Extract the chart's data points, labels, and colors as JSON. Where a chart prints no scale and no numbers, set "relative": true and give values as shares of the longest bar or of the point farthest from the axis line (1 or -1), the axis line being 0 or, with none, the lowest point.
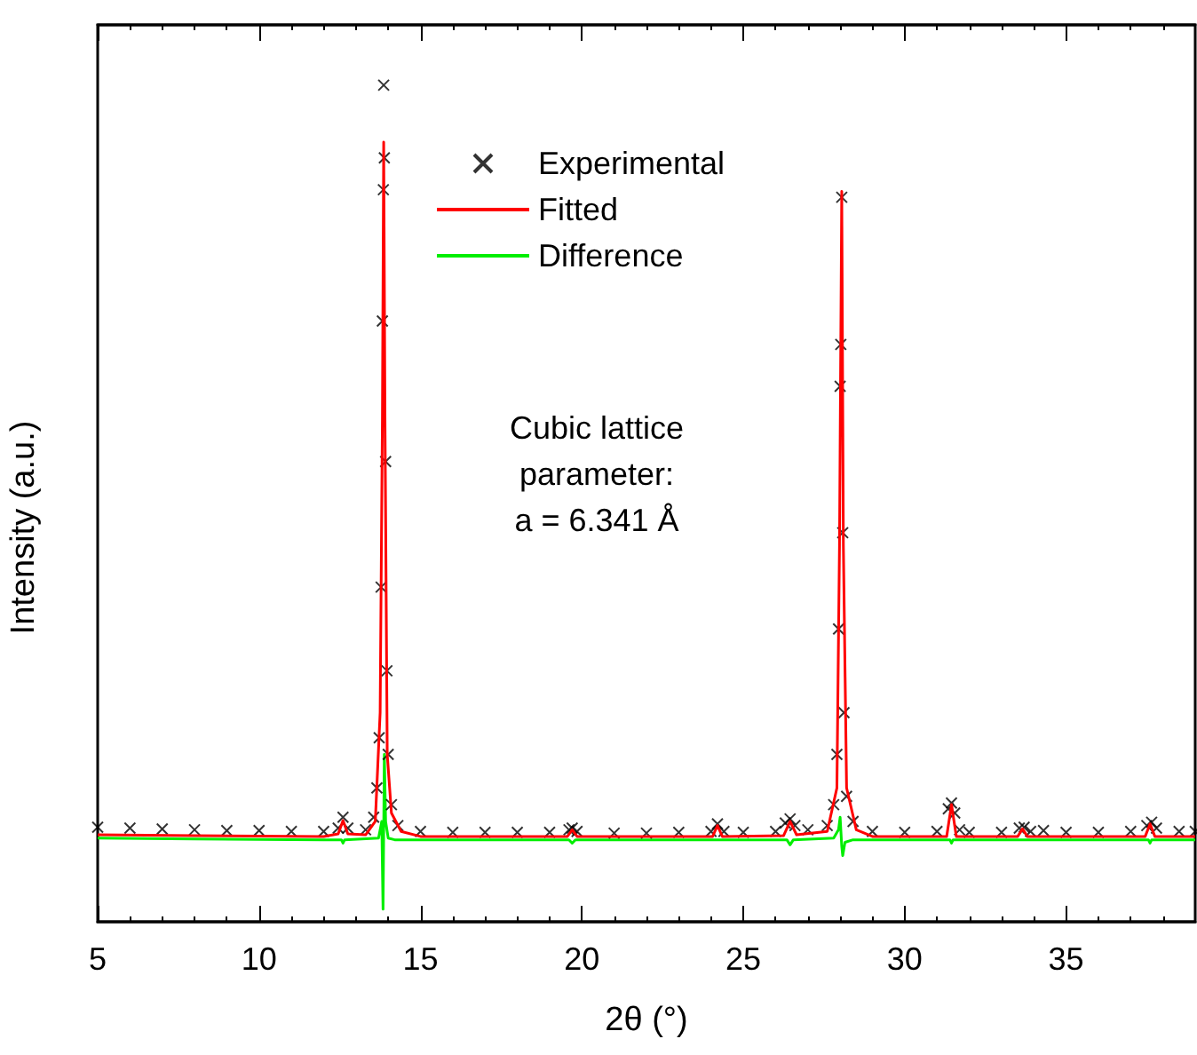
{
  "chart_data": {
    "type": "line",
    "relative": true,
    "xlabel": "2θ (°)",
    "ylabel": "Intensity (a.u.)",
    "xlim": [
      5,
      39
    ],
    "xticks": [
      5,
      10,
      15,
      20,
      25,
      30,
      35
    ],
    "grid": false,
    "legend": "top",
    "annotations": [
      "Cubic lattice\nparameter:\na = 6.341 Å"
    ],
    "series": [
      {
        "name": "Experimental",
        "type": "scatter",
        "marker": "cross",
        "color": "#000000",
        "x": [
          5,
          6,
          7,
          8,
          9,
          10,
          11,
          12,
          12.45,
          12.6,
          12.75,
          13.3,
          13.55,
          13.65,
          13.72,
          13.78,
          13.82,
          13.85,
          13.86,
          13.88,
          13.92,
          13.96,
          14.0,
          14.1,
          14.3,
          15,
          16,
          17,
          18,
          19,
          19.6,
          19.7,
          19.85,
          21,
          22,
          23,
          24,
          24.2,
          24.4,
          25,
          26,
          26.3,
          26.45,
          26.6,
          27,
          27.6,
          27.8,
          27.9,
          27.95,
          28.0,
          28.02,
          28.05,
          28.08,
          28.12,
          28.2,
          28.4,
          29,
          30,
          31,
          31.35,
          31.45,
          31.55,
          31.7,
          32,
          33,
          33.55,
          33.7,
          33.9,
          34.3,
          35,
          36,
          37,
          37.5,
          37.65,
          37.8,
          38.5,
          39
        ],
        "values": [
          0.113,
          0.112,
          0.111,
          0.11,
          0.109,
          0.109,
          0.108,
          0.108,
          0.112,
          0.125,
          0.112,
          0.11,
          0.125,
          0.16,
          0.22,
          0.4,
          0.718,
          0.875,
          1.0,
          0.913,
          0.55,
          0.3,
          0.2,
          0.14,
          0.115,
          0.108,
          0.107,
          0.107,
          0.107,
          0.107,
          0.11,
          0.112,
          0.108,
          0.106,
          0.106,
          0.107,
          0.108,
          0.117,
          0.108,
          0.107,
          0.108,
          0.118,
          0.123,
          0.115,
          0.11,
          0.115,
          0.14,
          0.2,
          0.35,
          0.64,
          0.69,
          0.866,
          0.465,
          0.25,
          0.15,
          0.12,
          0.108,
          0.107,
          0.108,
          0.135,
          0.142,
          0.13,
          0.11,
          0.107,
          0.107,
          0.112,
          0.113,
          0.108,
          0.109,
          0.107,
          0.107,
          0.108,
          0.115,
          0.119,
          0.112,
          0.108,
          0.108
        ]
      },
      {
        "name": "Fitted",
        "type": "line",
        "marker": "none",
        "color": "#ff0000",
        "x": [
          5,
          8,
          12,
          12.45,
          12.6,
          12.75,
          13.3,
          13.6,
          13.75,
          13.82,
          13.86,
          13.9,
          13.97,
          14.1,
          14.4,
          15,
          19.55,
          19.7,
          19.85,
          24.05,
          24.2,
          24.35,
          26.25,
          26.45,
          26.65,
          27.6,
          27.9,
          27.98,
          28.05,
          28.1,
          28.2,
          28.5,
          29,
          31.3,
          31.45,
          31.6,
          33.5,
          33.65,
          33.8,
          37.45,
          37.6,
          37.75,
          39
        ],
        "values": [
          0.104,
          0.103,
          0.102,
          0.105,
          0.121,
          0.105,
          0.104,
          0.12,
          0.25,
          0.6,
          0.932,
          0.6,
          0.2,
          0.13,
          0.108,
          0.102,
          0.102,
          0.11,
          0.102,
          0.102,
          0.115,
          0.102,
          0.103,
          0.12,
          0.104,
          0.108,
          0.16,
          0.45,
          0.873,
          0.45,
          0.16,
          0.11,
          0.102,
          0.102,
          0.14,
          0.102,
          0.102,
          0.111,
          0.102,
          0.102,
          0.117,
          0.102,
          0.102
        ]
      },
      {
        "name": "Difference",
        "type": "line",
        "marker": "none",
        "color": "#00ee00",
        "x": [
          5,
          8,
          12,
          12.55,
          12.6,
          12.65,
          13.7,
          13.8,
          13.84,
          13.88,
          13.92,
          14.0,
          14.2,
          19.6,
          19.7,
          19.8,
          26.35,
          26.45,
          26.55,
          27.8,
          27.95,
          28.0,
          28.05,
          28.08,
          28.15,
          28.4,
          31.4,
          31.45,
          31.5,
          37.55,
          37.6,
          37.65,
          39
        ],
        "values": [
          0.1,
          0.099,
          0.098,
          0.098,
          0.094,
          0.098,
          0.1,
          0.12,
          0.015,
          0.2,
          0.12,
          0.1,
          0.098,
          0.098,
          0.094,
          0.098,
          0.098,
          0.092,
          0.098,
          0.1,
          0.11,
          0.125,
          0.09,
          0.079,
          0.095,
          0.098,
          0.098,
          0.094,
          0.098,
          0.098,
          0.094,
          0.098,
          0.098
        ]
      }
    ]
  }
}
